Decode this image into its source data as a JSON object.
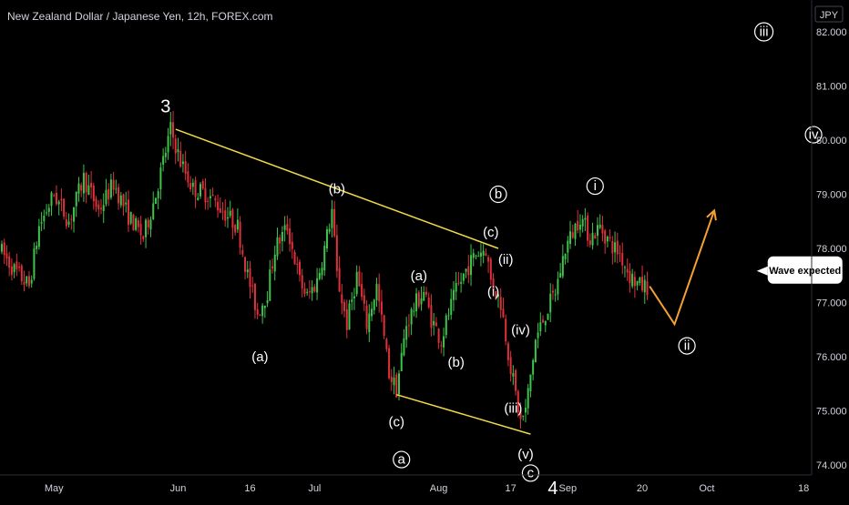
{
  "header": {
    "title": "New Zealand Dollar / Japanese Yen, 12h, FOREX.com",
    "currency": "JPY"
  },
  "colors": {
    "background": "#000000",
    "up": "#26a69a",
    "down": "#ef5350",
    "up_candle": "#3cc54a",
    "down_candle": "#e0303a",
    "trendline": "#f0d94a",
    "projection": "#f5a033",
    "axis_text": "#d1d4dc",
    "label": "#ffffff"
  },
  "chart_data": {
    "type": "candlestick",
    "title": "New Zealand Dollar / Japanese Yen, 12h, FOREX.com",
    "ylim": [
      73.4,
      82.1
    ],
    "y_ticks": [
      74.0,
      75.0,
      76.0,
      77.0,
      78.0,
      79.0,
      80.0,
      81.0,
      82.0
    ],
    "y_tick_labels": [
      "74.000",
      "75.000",
      "76.000",
      "77.000",
      "78.000",
      "79.000",
      "80.000",
      "81.000",
      "82.000"
    ],
    "x_tick_labels": [
      "May",
      "Jun",
      "16",
      "Jul",
      "Aug",
      "17",
      "Sep",
      "20",
      "Oct",
      "18"
    ],
    "x_tick_index": [
      21,
      71,
      100,
      126,
      176,
      205,
      228,
      258,
      284,
      323
    ],
    "candle_count": 261,
    "price_path": [
      [
        0,
        78.0
      ],
      [
        6,
        77.6
      ],
      [
        12,
        77.3
      ],
      [
        16,
        78.4
      ],
      [
        22,
        79.0
      ],
      [
        28,
        78.5
      ],
      [
        34,
        79.3
      ],
      [
        40,
        78.7
      ],
      [
        46,
        79.2
      ],
      [
        52,
        78.6
      ],
      [
        58,
        78.2
      ],
      [
        63,
        79.0
      ],
      [
        66,
        79.6
      ],
      [
        69,
        80.2
      ],
      [
        73,
        79.6
      ],
      [
        78,
        79.1
      ],
      [
        84,
        79.0
      ],
      [
        90,
        78.7
      ],
      [
        96,
        78.4
      ],
      [
        100,
        77.5
      ],
      [
        104,
        76.8
      ],
      [
        108,
        77.2
      ],
      [
        111,
        78.0
      ],
      [
        116,
        78.4
      ],
      [
        121,
        77.4
      ],
      [
        124,
        77.1
      ],
      [
        128,
        77.4
      ],
      [
        131,
        78.0
      ],
      [
        134,
        78.7
      ],
      [
        136,
        77.5
      ],
      [
        140,
        76.6
      ],
      [
        144,
        77.5
      ],
      [
        148,
        76.6
      ],
      [
        152,
        77.3
      ],
      [
        157,
        75.7
      ],
      [
        160,
        75.4
      ],
      [
        164,
        76.6
      ],
      [
        168,
        77.0
      ],
      [
        171,
        77.2
      ],
      [
        174,
        76.7
      ],
      [
        178,
        76.3
      ],
      [
        181,
        76.8
      ],
      [
        184,
        77.2
      ],
      [
        188,
        77.6
      ],
      [
        192,
        77.9
      ],
      [
        196,
        78.0
      ],
      [
        198,
        77.4
      ],
      [
        202,
        77.0
      ],
      [
        206,
        75.8
      ],
      [
        210,
        74.8
      ],
      [
        212,
        75.0
      ],
      [
        216,
        76.3
      ],
      [
        220,
        76.8
      ],
      [
        224,
        77.2
      ],
      [
        228,
        78.0
      ],
      [
        234,
        78.6
      ],
      [
        238,
        78.2
      ],
      [
        242,
        78.4
      ],
      [
        246,
        78.1
      ],
      [
        250,
        77.9
      ],
      [
        254,
        77.5
      ],
      [
        258,
        77.3
      ]
    ],
    "series": [
      {
        "name": "Upper trendline",
        "kind": "line",
        "points": [
          [
            70,
            80.2
          ],
          [
            200,
            78.0
          ]
        ]
      },
      {
        "name": "Lower trendline",
        "kind": "line",
        "points": [
          [
            159,
            75.3
          ],
          [
            213,
            74.57
          ]
        ]
      },
      {
        "name": "Projection",
        "kind": "line",
        "points": [
          [
            261,
            77.3
          ],
          [
            271,
            76.6
          ],
          [
            287,
            78.7
          ]
        ]
      }
    ],
    "annotations": [
      {
        "text": "3",
        "x": 66,
        "y": 80.6,
        "style": "big"
      },
      {
        "text": "(b)",
        "x": 135,
        "y": 79.1,
        "style": "plain"
      },
      {
        "text": "b",
        "x": 200,
        "y": 79.0,
        "style": "circled"
      },
      {
        "text": "(c)",
        "x": 197,
        "y": 78.3,
        "style": "plain"
      },
      {
        "text": "(ii)",
        "x": 203,
        "y": 77.8,
        "style": "plain"
      },
      {
        "text": "(a)",
        "x": 168,
        "y": 77.5,
        "style": "plain"
      },
      {
        "text": "(i)",
        "x": 198,
        "y": 77.2,
        "style": "plain"
      },
      {
        "text": "(iv)",
        "x": 209,
        "y": 76.5,
        "style": "plain"
      },
      {
        "text": "(a)",
        "x": 104,
        "y": 76.0,
        "style": "plain"
      },
      {
        "text": "(b)",
        "x": 183,
        "y": 75.9,
        "style": "plain"
      },
      {
        "text": "(c)",
        "x": 159,
        "y": 74.8,
        "style": "plain"
      },
      {
        "text": "(iii)",
        "x": 206,
        "y": 75.05,
        "style": "plain"
      },
      {
        "text": "a",
        "x": 161,
        "y": 74.1,
        "style": "circled"
      },
      {
        "text": "(v)",
        "x": 211,
        "y": 74.2,
        "style": "plain"
      },
      {
        "text": "c",
        "x": 213,
        "y": 73.85,
        "style": "circled"
      },
      {
        "text": "4",
        "x": 222,
        "y": 73.55,
        "style": "big"
      },
      {
        "text": "i",
        "x": 239,
        "y": 79.15,
        "style": "circled"
      },
      {
        "text": "ii",
        "x": 276,
        "y": 76.2,
        "style": "circled"
      },
      {
        "text": "iii",
        "x": 307,
        "y": 82.0,
        "style": "circled"
      },
      {
        "text": "iv",
        "x": 327,
        "y": 80.1,
        "style": "circled"
      }
    ],
    "callout": {
      "text": "Wave expected",
      "x": 310,
      "y": 77.6
    }
  }
}
